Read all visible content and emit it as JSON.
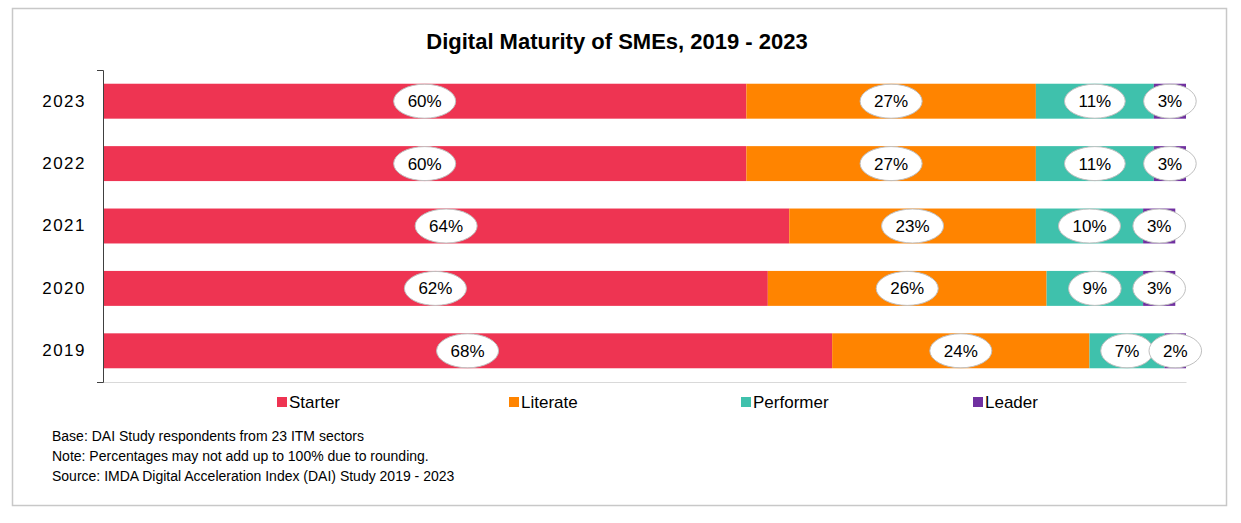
{
  "chart_data": {
    "type": "bar",
    "title": "Digital Maturity of SMEs, 2019 - 2023",
    "orientation": "horizontal",
    "stacked": true,
    "data_labels": true,
    "tick_labels": "y",
    "legend": "bottom",
    "categories": [
      "2023",
      "2022",
      "2021",
      "2020",
      "2019"
    ],
    "xlim": [
      0,
      101
    ],
    "xticks": [],
    "series": [
      {
        "name": "Starter",
        "color": "#ee3452",
        "values": [
          60,
          60,
          64,
          62,
          68
        ],
        "value_labels": [
          "60%",
          "60%",
          "64%",
          "62%",
          "68%"
        ]
      },
      {
        "name": "Literate",
        "color": "#ff8400",
        "values": [
          27,
          27,
          23,
          26,
          24
        ],
        "value_labels": [
          "27%",
          "27%",
          "23%",
          "26%",
          "24%"
        ]
      },
      {
        "name": "Performer",
        "color": "#3fc1ac",
        "values": [
          11,
          11,
          10,
          9,
          7
        ],
        "value_labels": [
          "11%",
          "11%",
          "10%",
          "9%",
          "7%"
        ]
      },
      {
        "name": "Leader",
        "color": "#7030a0",
        "values": [
          3,
          3,
          3,
          3,
          2
        ],
        "value_labels": [
          "3%",
          "3%",
          "3%",
          "3%",
          "2%"
        ]
      }
    ],
    "annotations": [
      "Base: DAI Study respondents from 23 ITM sectors",
      "Note: Percentages may not add up to 100% due to rounding.",
      "Source: IMDA Digital Acceleration Index (DAI) Study 2019 - 2023"
    ]
  }
}
